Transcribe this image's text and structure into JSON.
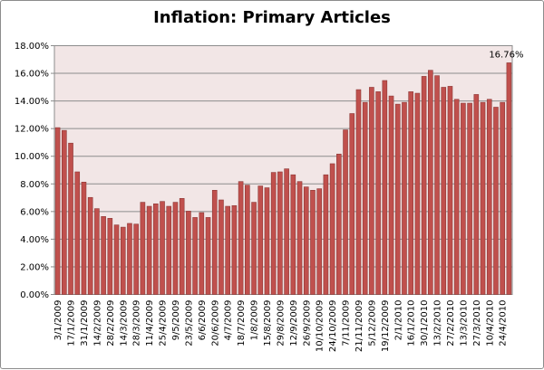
{
  "chart_data": {
    "type": "bar",
    "title": "Inflation: Primary Articles",
    "xlabel": "",
    "ylabel": "",
    "ylim": [
      0,
      18
    ],
    "y_ticks": [
      "0.00%",
      "2.00%",
      "4.00%",
      "6.00%",
      "8.00%",
      "10.00%",
      "12.00%",
      "14.00%",
      "16.00%",
      "18.00%"
    ],
    "grid": true,
    "legend": "none",
    "x_tick_labels": [
      "3/1/2009",
      "17/1/2009",
      "31/1/2009",
      "14/2/2009",
      "28/2/2009",
      "14/3/2009",
      "28/3/2009",
      "11/4/2009",
      "25/4/2009",
      "9/5/2009",
      "23/5/2009",
      "6/6/2009",
      "20/6/2009",
      "4/7/2009",
      "18/7/2009",
      "1/8/2009",
      "15/8/2009",
      "29/8/2009",
      "12/9/2009",
      "26/9/2009",
      "10/10/2009",
      "24/10/2009",
      "7/11/2009",
      "21/11/2009",
      "5/12/2009",
      "19/12/2009",
      "2/1/2010",
      "16/1/2010",
      "30/1/2010",
      "13/2/2010",
      "27/2/2010",
      "13/3/2010",
      "27/3/2010",
      "10/4/2010",
      "24/4/2010"
    ],
    "values": [
      12.07,
      11.87,
      10.95,
      8.87,
      8.13,
      7.02,
      6.21,
      5.64,
      5.51,
      5.03,
      4.87,
      5.14,
      5.09,
      6.67,
      6.38,
      6.56,
      6.73,
      6.38,
      6.67,
      6.95,
      6.03,
      5.57,
      5.92,
      5.57,
      7.54,
      6.84,
      6.38,
      6.43,
      8.17,
      7.91,
      6.67,
      7.85,
      7.72,
      8.83,
      8.87,
      9.09,
      8.66,
      8.17,
      7.78,
      7.54,
      7.65,
      8.66,
      9.46,
      10.16,
      11.91,
      13.09,
      14.82,
      13.9,
      14.99,
      14.67,
      15.48,
      14.36,
      13.77,
      13.9,
      14.67,
      14.56,
      15.78,
      16.22,
      15.83,
      14.99,
      15.06,
      14.12,
      13.84,
      13.84,
      14.47,
      13.9,
      14.12,
      13.55,
      13.9,
      16.76
    ],
    "data_label": "16.76%",
    "colors": {
      "bar": "#C0504D",
      "bar_edge": "#8C3836",
      "plot_bg": "#F2E6E6",
      "grid": "#8c8c8c"
    }
  }
}
